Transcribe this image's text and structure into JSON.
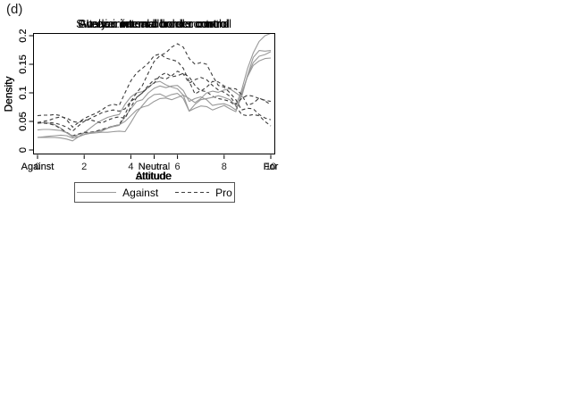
{
  "figure_label": "(d)",
  "colors": {
    "against_line": "#999999",
    "pro_line": "#3c3c3c",
    "frame": "#000000",
    "text": "#1a1a1a",
    "background": "#ffffff"
  },
  "legend": {
    "against": "Against",
    "pro": "Pro",
    "position": "bottom"
  },
  "y_axis": {
    "label": "Density",
    "tick_values": [
      0,
      0.05,
      0.1,
      0.15,
      0.2
    ],
    "tick_labels": [
      "0",
      "0.05",
      "0.1",
      "0.15",
      "0.2"
    ]
  },
  "chart_data": [
    {
      "type": "line",
      "title": "Sweden: internal border control",
      "xlabel": "Attitude",
      "ylabel": "Density",
      "xlim": [
        0,
        10
      ],
      "ylim": [
        0,
        0.21
      ],
      "grid": false,
      "x_step": 0.25,
      "x_ticks": [
        {
          "value": 0,
          "label": "0"
        },
        {
          "value": 2,
          "label": "2"
        },
        {
          "value": 4,
          "label": "4"
        },
        {
          "value": 6,
          "label": "6"
        },
        {
          "value": 8,
          "label": "8"
        },
        {
          "value": 10,
          "label": "10"
        }
      ],
      "series": [
        {
          "name": "Against",
          "style": "solid",
          "values": [
            0.022,
            0.022,
            0.022,
            0.022,
            0.021,
            0.019,
            0.016,
            0.023,
            0.03,
            0.038,
            0.046,
            0.052,
            0.057,
            0.06,
            0.062,
            0.08,
            0.093,
            0.1,
            0.102,
            0.109,
            0.118,
            0.12,
            0.114,
            0.11,
            0.107,
            0.096,
            0.068,
            0.073,
            0.077,
            0.076,
            0.07,
            0.074,
            0.078,
            0.072,
            0.067,
            0.095,
            0.13,
            0.153,
            0.164,
            0.167,
            0.172
          ]
        },
        {
          "name": "Pro",
          "style": "dashed",
          "values": [
            0.06,
            0.061,
            0.061,
            0.062,
            0.06,
            0.053,
            0.04,
            0.048,
            0.055,
            0.06,
            0.064,
            0.07,
            0.077,
            0.08,
            0.078,
            0.1,
            0.121,
            0.135,
            0.143,
            0.152,
            0.165,
            0.168,
            0.161,
            0.158,
            0.155,
            0.143,
            0.12,
            0.098,
            0.104,
            0.102,
            0.094,
            0.09,
            0.088,
            0.085,
            0.077,
            0.062,
            0.06,
            0.062,
            0.06,
            0.05,
            0.042
          ]
        }
      ]
    },
    {
      "type": "line",
      "title": "Austria: internal border control",
      "xlabel": "attitude",
      "ylabel": "Density",
      "xlim": [
        0,
        10
      ],
      "ylim": [
        0,
        0.21
      ],
      "grid": false,
      "x_step": 0.25,
      "x_ticks": [
        {
          "value": 0,
          "label": "Against"
        },
        {
          "value": 5,
          "label": "Neutral"
        },
        {
          "value": 10,
          "label": "For"
        }
      ],
      "series": [
        {
          "name": "Against",
          "style": "solid",
          "values": [
            0.022,
            0.023,
            0.024,
            0.025,
            0.026,
            0.025,
            0.021,
            0.023,
            0.027,
            0.029,
            0.03,
            0.031,
            0.031,
            0.032,
            0.033,
            0.032,
            0.048,
            0.065,
            0.078,
            0.09,
            0.097,
            0.098,
            0.093,
            0.097,
            0.099,
            0.09,
            0.068,
            0.08,
            0.088,
            0.09,
            0.092,
            0.095,
            0.092,
            0.088,
            0.078,
            0.105,
            0.142,
            0.17,
            0.19,
            0.2,
            0.204
          ]
        },
        {
          "name": "Pro",
          "style": "dashed",
          "values": [
            0.047,
            0.048,
            0.048,
            0.047,
            0.044,
            0.04,
            0.033,
            0.042,
            0.05,
            0.055,
            0.06,
            0.065,
            0.068,
            0.07,
            0.068,
            0.072,
            0.085,
            0.092,
            0.1,
            0.113,
            0.123,
            0.127,
            0.124,
            0.13,
            0.138,
            0.133,
            0.117,
            0.123,
            0.127,
            0.123,
            0.113,
            0.105,
            0.101,
            0.094,
            0.08,
            0.09,
            0.096,
            0.094,
            0.09,
            0.087,
            0.085
          ]
        }
      ]
    },
    {
      "type": "line",
      "title": "Italy: internal border control",
      "xlabel": "attitude",
      "ylabel": "Density",
      "xlim": [
        0,
        10
      ],
      "ylim": [
        0,
        0.21
      ],
      "grid": false,
      "x_step": 0.25,
      "x_ticks": [
        {
          "value": 0,
          "label": "Against"
        },
        {
          "value": 5,
          "label": "Neutral"
        },
        {
          "value": 10,
          "label": "For"
        }
      ],
      "series": [
        {
          "name": "Against",
          "style": "solid",
          "values": [
            0.046,
            0.048,
            0.047,
            0.044,
            0.038,
            0.03,
            0.023,
            0.027,
            0.03,
            0.03,
            0.032,
            0.035,
            0.038,
            0.041,
            0.043,
            0.058,
            0.072,
            0.085,
            0.088,
            0.1,
            0.108,
            0.112,
            0.109,
            0.112,
            0.113,
            0.104,
            0.085,
            0.09,
            0.093,
            0.088,
            0.078,
            0.08,
            0.081,
            0.077,
            0.07,
            0.1,
            0.128,
            0.148,
            0.156,
            0.16,
            0.161
          ]
        },
        {
          "name": "Pro",
          "style": "dashed",
          "values": [
            0.048,
            0.047,
            0.046,
            0.043,
            0.037,
            0.031,
            0.025,
            0.028,
            0.031,
            0.031,
            0.033,
            0.036,
            0.039,
            0.042,
            0.044,
            0.062,
            0.085,
            0.1,
            0.113,
            0.135,
            0.155,
            0.165,
            0.17,
            0.18,
            0.186,
            0.18,
            0.16,
            0.15,
            0.153,
            0.15,
            0.13,
            0.113,
            0.11,
            0.1,
            0.088,
            0.07,
            0.073,
            0.072,
            0.062,
            0.056,
            0.053
          ]
        }
      ]
    },
    {
      "type": "line",
      "title": "Greece: internal border control",
      "xlabel": "attitude",
      "ylabel": "Density",
      "xlim": [
        0,
        10
      ],
      "ylim": [
        0,
        0.21
      ],
      "grid": false,
      "x_step": 0.25,
      "x_ticks": [
        {
          "value": 0,
          "label": "Against"
        },
        {
          "value": 5,
          "label": "Neutral"
        },
        {
          "value": 10,
          "label": "For"
        }
      ],
      "series": [
        {
          "name": "Against",
          "style": "solid",
          "values": [
            0.035,
            0.036,
            0.036,
            0.035,
            0.034,
            0.03,
            0.025,
            0.023,
            0.027,
            0.03,
            0.032,
            0.033,
            0.038,
            0.042,
            0.044,
            0.05,
            0.06,
            0.07,
            0.075,
            0.078,
            0.085,
            0.09,
            0.091,
            0.088,
            0.092,
            0.096,
            0.09,
            0.083,
            0.09,
            0.1,
            0.103,
            0.101,
            0.105,
            0.107,
            0.1,
            0.093,
            0.13,
            0.162,
            0.174,
            0.173,
            0.174
          ]
        },
        {
          "name": "Pro",
          "style": "dashed",
          "values": [
            0.048,
            0.05,
            0.052,
            0.056,
            0.058,
            0.056,
            0.05,
            0.048,
            0.052,
            0.053,
            0.05,
            0.047,
            0.052,
            0.056,
            0.058,
            0.055,
            0.075,
            0.092,
            0.1,
            0.11,
            0.117,
            0.13,
            0.135,
            0.128,
            0.13,
            0.134,
            0.128,
            0.113,
            0.103,
            0.11,
            0.12,
            0.119,
            0.112,
            0.108,
            0.107,
            0.097,
            0.078,
            0.082,
            0.091,
            0.086,
            0.079
          ]
        }
      ]
    }
  ]
}
